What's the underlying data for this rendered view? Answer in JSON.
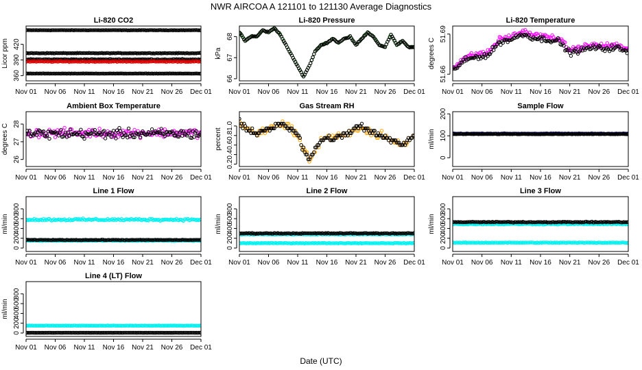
{
  "page_title": "NWR   AIRCOA A   121101 to 121130   Average Diagnostics",
  "x_axis_title": "Date (UTC)",
  "x_ticks": [
    "Nov 01",
    "Nov 06",
    "Nov 11",
    "Nov 16",
    "Nov 21",
    "Nov 26",
    "Dec 01"
  ],
  "colors": {
    "black": "#000000",
    "red": "#dd0000",
    "magenta": "#ff00ff",
    "green": "#2f8f2f",
    "orange": "#ffa500",
    "cyan": "#00f0f0",
    "navy": "#1a1a6e"
  },
  "chart_data": [
    {
      "id": "co2",
      "type": "scatter",
      "title": "Li-820 CO2",
      "ylabel": "Licor ppm",
      "xlim": [
        0,
        30
      ],
      "ylim": [
        350,
        455
      ],
      "yticks": [
        360,
        390,
        420
      ],
      "series": [
        {
          "name": "level-1",
          "color": "black",
          "mode": "flat",
          "values": [
            447.0
          ],
          "noise": 0.5
        },
        {
          "name": "level-2",
          "color": "black",
          "mode": "flat",
          "values": [
            403.0
          ],
          "noise": 0.8
        },
        {
          "name": "level-3",
          "color": "black",
          "mode": "flat",
          "values": [
            391.0
          ],
          "noise": 1.2
        },
        {
          "name": "red",
          "color": "red",
          "mode": "flat",
          "values": [
            387.0
          ],
          "noise": 1.0
        },
        {
          "name": "level-4",
          "color": "black",
          "mode": "flat",
          "values": [
            364.0
          ],
          "noise": 0.4
        }
      ]
    },
    {
      "id": "pressure",
      "type": "scatter",
      "title": "Li-820 Pressure",
      "ylabel": "kPa",
      "xlim": [
        0,
        30
      ],
      "ylim": [
        65.9,
        68.5
      ],
      "yticks": [
        66.0,
        67.0,
        68.0
      ],
      "series": [
        {
          "name": "pressure-green",
          "color": "green",
          "mode": "curve",
          "x": [
            0,
            1,
            2,
            3,
            4,
            5,
            6,
            7,
            8,
            9,
            10,
            11,
            12,
            13,
            14,
            15,
            16,
            17,
            18,
            19,
            20,
            21,
            22,
            23,
            24,
            25,
            26,
            27,
            28,
            29,
            30
          ],
          "values": [
            68.2,
            67.8,
            68.0,
            68.0,
            68.3,
            68.2,
            68.4,
            68.1,
            67.6,
            67.1,
            66.6,
            66.1,
            66.6,
            67.3,
            67.6,
            67.7,
            67.9,
            67.7,
            67.9,
            68.0,
            67.6,
            67.9,
            68.2,
            68.0,
            67.6,
            67.5,
            68.1,
            67.6,
            67.8,
            67.5,
            67.5
          ],
          "noise": 0.03
        },
        {
          "name": "pressure-black",
          "color": "black",
          "mode": "curve",
          "x": [
            0,
            1,
            2,
            3,
            4,
            5,
            6,
            7,
            8,
            9,
            10,
            11,
            12,
            13,
            14,
            15,
            16,
            17,
            18,
            19,
            20,
            21,
            22,
            23,
            24,
            25,
            26,
            27,
            28,
            29,
            30
          ],
          "values": [
            68.2,
            67.8,
            68.0,
            68.0,
            68.3,
            68.2,
            68.4,
            68.1,
            67.6,
            67.1,
            66.6,
            66.1,
            66.6,
            67.3,
            67.6,
            67.7,
            67.9,
            67.7,
            67.9,
            68.0,
            67.6,
            67.9,
            68.2,
            68.0,
            67.6,
            67.5,
            68.1,
            67.6,
            67.8,
            67.5,
            67.5
          ],
          "noise": 0.04
        }
      ]
    },
    {
      "id": "li820temp",
      "type": "scatter",
      "title": "Li-820 Temperature",
      "ylabel": "degrees C",
      "xlim": [
        0,
        30
      ],
      "ylim": [
        51.655,
        51.696
      ],
      "yticks": [
        51.66,
        51.69
      ],
      "series": [
        {
          "name": "temp-magenta",
          "color": "magenta",
          "mode": "curve",
          "x": [
            0,
            2,
            4,
            6,
            8,
            10,
            12,
            14,
            16,
            18,
            20,
            22,
            24,
            26,
            28,
            30
          ],
          "values": [
            51.665,
            51.672,
            51.675,
            51.676,
            51.686,
            51.688,
            51.692,
            51.689,
            51.688,
            51.687,
            51.678,
            51.68,
            51.682,
            51.681,
            51.682,
            51.678
          ],
          "noise": 0.003
        },
        {
          "name": "temp-black",
          "color": "black",
          "mode": "curve",
          "x": [
            0,
            2,
            4,
            6,
            8,
            10,
            12,
            14,
            16,
            18,
            20,
            22,
            24,
            26,
            28,
            30
          ],
          "values": [
            51.663,
            51.67,
            51.673,
            51.674,
            51.684,
            51.686,
            51.69,
            51.687,
            51.686,
            51.685,
            51.676,
            51.678,
            51.68,
            51.679,
            51.68,
            51.676
          ],
          "noise": 0.003
        }
      ]
    },
    {
      "id": "boxtemp",
      "type": "scatter",
      "title": "Ambient Box Temperature",
      "ylabel": "degrees C",
      "xlim": [
        0,
        30
      ],
      "ylim": [
        25.6,
        28.7
      ],
      "yticks": [
        26.0,
        27.0,
        28.0
      ],
      "series": [
        {
          "name": "box-magenta",
          "color": "magenta",
          "mode": "flat",
          "values": [
            27.5
          ],
          "noise": 0.35
        },
        {
          "name": "box-black",
          "color": "black",
          "mode": "flat",
          "values": [
            27.45
          ],
          "noise": 0.4
        }
      ]
    },
    {
      "id": "rh",
      "type": "scatter",
      "title": "Gas Stream RH",
      "ylabel": "percent",
      "xlim": [
        0,
        30
      ],
      "ylim": [
        0.15,
        1.3
      ],
      "yticks": [
        0.2,
        0.4,
        0.6,
        0.8,
        1.0
      ],
      "series": [
        {
          "name": "rh-orange",
          "color": "orange",
          "mode": "step",
          "x": [
            0,
            1,
            2,
            3,
            4,
            5,
            6,
            7,
            8,
            9,
            10,
            11,
            12,
            13,
            14,
            15,
            16,
            17,
            18,
            19,
            20,
            21,
            22,
            23,
            24,
            25,
            26,
            27,
            28,
            29,
            30
          ],
          "values": [
            1.1,
            0.95,
            0.9,
            0.85,
            0.9,
            0.95,
            1.0,
            1.05,
            1.0,
            0.95,
            0.8,
            0.5,
            0.3,
            0.5,
            0.7,
            0.75,
            0.75,
            0.8,
            0.8,
            0.85,
            0.95,
            1.0,
            0.9,
            0.85,
            0.8,
            0.75,
            0.7,
            0.65,
            0.6,
            0.7,
            0.8
          ],
          "noise": 0.1
        },
        {
          "name": "rh-black",
          "color": "black",
          "mode": "step",
          "x": [
            0,
            1,
            2,
            3,
            4,
            5,
            6,
            7,
            8,
            9,
            10,
            11,
            12,
            13,
            14,
            15,
            16,
            17,
            18,
            19,
            20,
            21,
            22,
            23,
            24,
            25,
            26,
            27,
            28,
            29,
            30
          ],
          "values": [
            1.1,
            0.95,
            0.9,
            0.85,
            0.9,
            0.95,
            1.0,
            1.05,
            1.0,
            0.95,
            0.8,
            0.5,
            0.3,
            0.5,
            0.7,
            0.75,
            0.75,
            0.8,
            0.8,
            0.85,
            0.95,
            1.0,
            0.9,
            0.85,
            0.8,
            0.75,
            0.7,
            0.65,
            0.6,
            0.7,
            0.8
          ],
          "noise": 0.08
        }
      ]
    },
    {
      "id": "sampleflow",
      "type": "scatter",
      "title": "Sample Flow",
      "ylabel": "ml/min",
      "xlim": [
        0,
        30
      ],
      "ylim": [
        -40,
        210
      ],
      "yticks": [
        0,
        100,
        200
      ],
      "series": [
        {
          "name": "flow-navy",
          "color": "navy",
          "mode": "flat",
          "values": [
            110
          ],
          "noise": 2
        },
        {
          "name": "flow-black",
          "color": "black",
          "mode": "flat",
          "values": [
            108
          ],
          "noise": 1.5
        }
      ]
    },
    {
      "id": "line1",
      "type": "scatter",
      "title": "Line 1 Flow",
      "ylabel": "ml/min",
      "xlim": [
        0,
        30
      ],
      "ylim": [
        -70,
        1050
      ],
      "yticks": [
        0,
        200,
        400,
        600,
        800
      ],
      "series": [
        {
          "name": "l1-cyan-high",
          "color": "cyan",
          "mode": "flat",
          "values": [
            580
          ],
          "noise": 30
        },
        {
          "name": "l1-cyan-low",
          "color": "cyan",
          "mode": "flat",
          "values": [
            150
          ],
          "noise": 12
        },
        {
          "name": "l1-black",
          "color": "black",
          "mode": "flat",
          "values": [
            165
          ],
          "noise": 8
        }
      ]
    },
    {
      "id": "line2",
      "type": "scatter",
      "title": "Line 2 Flow",
      "ylabel": "ml/min",
      "xlim": [
        0,
        30
      ],
      "ylim": [
        -70,
        1050
      ],
      "yticks": [
        0,
        200,
        400,
        600,
        800
      ],
      "series": [
        {
          "name": "l2-cyan-low",
          "color": "cyan",
          "mode": "flat",
          "values": [
            100
          ],
          "noise": 8
        },
        {
          "name": "l2-cyan-mid",
          "color": "cyan",
          "mode": "flat",
          "values": [
            280
          ],
          "noise": 10
        },
        {
          "name": "l2-black",
          "color": "black",
          "mode": "flat",
          "values": [
            300
          ],
          "noise": 12
        }
      ]
    },
    {
      "id": "line3",
      "type": "scatter",
      "title": "Line 3 Flow",
      "ylabel": "ml/min",
      "xlim": [
        0,
        30
      ],
      "ylim": [
        -70,
        1050
      ],
      "yticks": [
        0,
        200,
        400,
        600,
        800
      ],
      "series": [
        {
          "name": "l3-cyan-low",
          "color": "cyan",
          "mode": "flat",
          "values": [
            110
          ],
          "noise": 8
        },
        {
          "name": "l3-cyan-high",
          "color": "cyan",
          "mode": "flat",
          "values": [
            490
          ],
          "noise": 15
        },
        {
          "name": "l3-black",
          "color": "black",
          "mode": "flat",
          "values": [
            530
          ],
          "noise": 12
        }
      ]
    },
    {
      "id": "line4",
      "type": "scatter",
      "title": "Line 4 (LT) Flow",
      "ylabel": "ml/min",
      "xlim": [
        0,
        30
      ],
      "ylim": [
        -70,
        1050
      ],
      "yticks": [
        0,
        200,
        400,
        600,
        800
      ],
      "series": [
        {
          "name": "l4-cyan",
          "color": "cyan",
          "mode": "flat",
          "values": [
            150
          ],
          "noise": 5
        },
        {
          "name": "l4-black",
          "color": "black",
          "mode": "flat",
          "values": [
            5
          ],
          "noise": 1
        }
      ]
    }
  ]
}
